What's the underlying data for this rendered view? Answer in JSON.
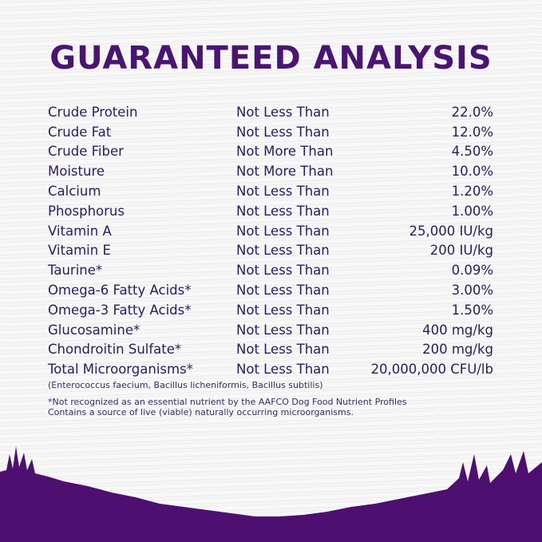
{
  "title": "GUARANTEED ANALYSIS",
  "colors": {
    "brand_purple": "#4e1070",
    "text": "#2d1b5c"
  },
  "rows": [
    {
      "name": "Crude Protein",
      "qualifier": "Not Less Than",
      "value": "22.0%"
    },
    {
      "name": "Crude Fat",
      "qualifier": "Not Less Than",
      "value": "12.0%"
    },
    {
      "name": "Crude Fiber",
      "qualifier": "Not More Than",
      "value": "4.50%"
    },
    {
      "name": "Moisture",
      "qualifier": "Not More Than",
      "value": "10.0%"
    },
    {
      "name": "Calcium",
      "qualifier": "Not Less Than",
      "value": "1.20%"
    },
    {
      "name": "Phosphorus",
      "qualifier": "Not Less Than",
      "value": "1.00%"
    },
    {
      "name": "Vitamin A",
      "qualifier": "Not Less Than",
      "value": "25,000 IU/kg"
    },
    {
      "name": "Vitamin E",
      "qualifier": "Not Less Than",
      "value": "200 IU/kg"
    },
    {
      "name": "Taurine*",
      "qualifier": "Not Less Than",
      "value": "0.09%"
    },
    {
      "name": "Omega-6 Fatty Acids*",
      "qualifier": "Not Less Than",
      "value": "3.00%"
    },
    {
      "name": "Omega-3 Fatty Acids*",
      "qualifier": "Not Less Than",
      "value": "1.50%"
    },
    {
      "name": "Glucosamine*",
      "qualifier": "Not Less Than",
      "value": "400 mg/kg"
    },
    {
      "name": "Chondroitin Sulfate*",
      "qualifier": "Not Less Than",
      "value": "200 mg/kg"
    },
    {
      "name": "Total Microorganisms*",
      "qualifier": "Not Less Than",
      "value": "20,000,000 CFU/lb"
    }
  ],
  "strains_note": "(Enterococcus faecium, Bacillus licheniformis, Bacillus subtilis)",
  "footnote_1": "*Not recognized as an essential nutrient by the AAFCO Dog Food Nutrient Profiles",
  "footnote_2": "Contains a source of live (viable) naturally occurring microorganisms."
}
